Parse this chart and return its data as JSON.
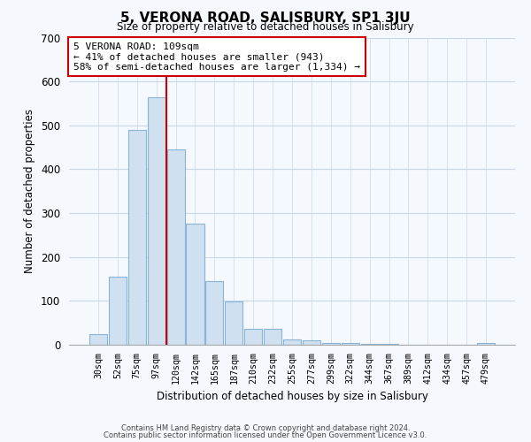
{
  "title": "5, VERONA ROAD, SALISBURY, SP1 3JU",
  "subtitle": "Size of property relative to detached houses in Salisbury",
  "xlabel": "Distribution of detached houses by size in Salisbury",
  "ylabel": "Number of detached properties",
  "bar_labels": [
    "30sqm",
    "52sqm",
    "75sqm",
    "97sqm",
    "120sqm",
    "142sqm",
    "165sqm",
    "187sqm",
    "210sqm",
    "232sqm",
    "255sqm",
    "277sqm",
    "299sqm",
    "322sqm",
    "344sqm",
    "367sqm",
    "389sqm",
    "412sqm",
    "434sqm",
    "457sqm",
    "479sqm"
  ],
  "bar_values": [
    25,
    155,
    490,
    565,
    445,
    275,
    145,
    98,
    37,
    37,
    13,
    10,
    5,
    5,
    3,
    2,
    1,
    0,
    0,
    0,
    5
  ],
  "bar_color": "#cfe0f0",
  "bar_edge_color": "#88b4d8",
  "vline_x": 3.5,
  "vline_color": "#cc0000",
  "annotation_line1": "5 VERONA ROAD: 109sqm",
  "annotation_line2": "← 41% of detached houses are smaller (943)",
  "annotation_line3": "58% of semi-detached houses are larger (1,334) →",
  "annotation_box_edge": "#cc0000",
  "ylim": [
    0,
    700
  ],
  "yticks": [
    0,
    100,
    200,
    300,
    400,
    500,
    600,
    700
  ],
  "footer1": "Contains HM Land Registry data © Crown copyright and database right 2024.",
  "footer2": "Contains public sector information licensed under the Open Government Licence v3.0.",
  "background_color": "#f5f8fc",
  "plot_bg_color": "#f5f8fc",
  "grid_color": "#c8d8e8"
}
